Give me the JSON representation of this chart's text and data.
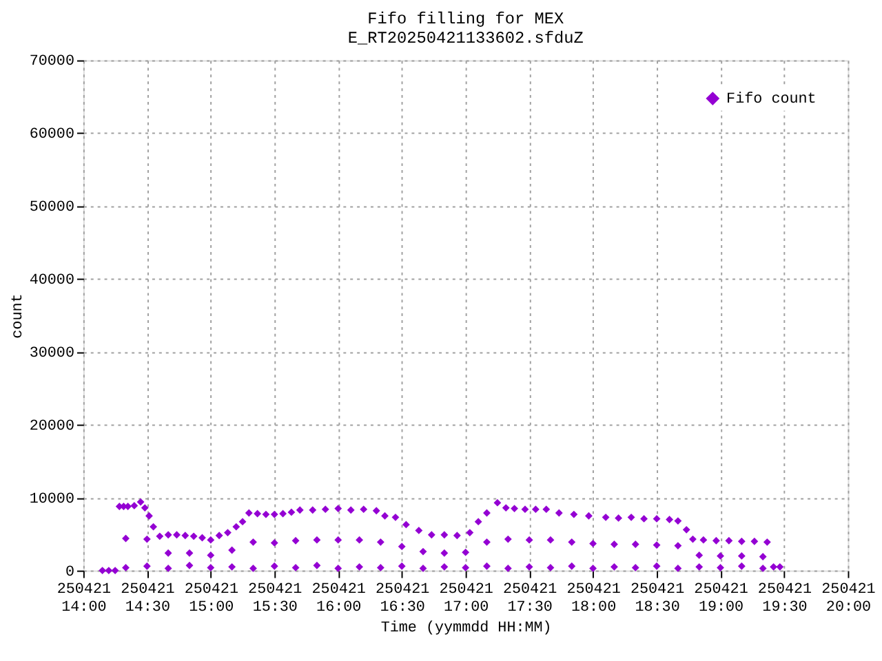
{
  "chart_data": {
    "type": "scatter",
    "title": "Fifo filling for MEX",
    "subtitle": "E_RT20250421133602.sfduZ",
    "xlabel": "Time (yymmdd HH:MM)",
    "ylabel": "count",
    "xlim": [
      "2025-04-21T14:00",
      "2025-04-21T20:00"
    ],
    "xticks": [
      {
        "value": "2025-04-21T14:00",
        "label": "250421\n14:00"
      },
      {
        "value": "2025-04-21T14:30",
        "label": "250421\n14:30"
      },
      {
        "value": "2025-04-21T15:00",
        "label": "250421\n15:00"
      },
      {
        "value": "2025-04-21T15:30",
        "label": "250421\n15:30"
      },
      {
        "value": "2025-04-21T16:00",
        "label": "250421\n16:00"
      },
      {
        "value": "2025-04-21T16:30",
        "label": "250421\n16:30"
      },
      {
        "value": "2025-04-21T17:00",
        "label": "250421\n17:00"
      },
      {
        "value": "2025-04-21T17:30",
        "label": "250421\n17:30"
      },
      {
        "value": "2025-04-21T18:00",
        "label": "250421\n18:00"
      },
      {
        "value": "2025-04-21T18:30",
        "label": "250421\n18:30"
      },
      {
        "value": "2025-04-21T19:00",
        "label": "250421\n19:00"
      },
      {
        "value": "2025-04-21T19:30",
        "label": "250421\n19:30"
      },
      {
        "value": "2025-04-21T20:00",
        "label": "250421\n20:00"
      }
    ],
    "ylim": [
      0,
      70000
    ],
    "yticks": [
      0,
      10000,
      20000,
      30000,
      40000,
      50000,
      60000,
      70000
    ],
    "grid": true,
    "legend": "top right",
    "marker": "diamond",
    "series": [
      {
        "name": "Fifo count",
        "color": "#9400d3",
        "x": [
          "2025-04-21T14:09",
          "2025-04-21T14:12",
          "2025-04-21T14:15",
          "2025-04-21T14:17",
          "2025-04-21T14:19",
          "2025-04-21T14:21",
          "2025-04-21T14:24",
          "2025-04-21T14:27",
          "2025-04-21T14:29",
          "2025-04-21T14:31",
          "2025-04-21T14:33",
          "2025-04-21T14:36",
          "2025-04-21T14:40",
          "2025-04-21T14:44",
          "2025-04-21T14:48",
          "2025-04-21T14:52",
          "2025-04-21T14:56",
          "2025-04-21T15:00",
          "2025-04-21T15:04",
          "2025-04-21T15:08",
          "2025-04-21T15:12",
          "2025-04-21T15:15",
          "2025-04-21T15:18",
          "2025-04-21T15:22",
          "2025-04-21T15:26",
          "2025-04-21T15:30",
          "2025-04-21T15:34",
          "2025-04-21T15:38",
          "2025-04-21T15:42",
          "2025-04-21T15:48",
          "2025-04-21T15:54",
          "2025-04-21T16:00",
          "2025-04-21T16:06",
          "2025-04-21T16:12",
          "2025-04-21T16:18",
          "2025-04-21T16:22",
          "2025-04-21T16:27",
          "2025-04-21T16:32",
          "2025-04-21T16:38",
          "2025-04-21T16:44",
          "2025-04-21T16:50",
          "2025-04-21T16:56",
          "2025-04-21T17:02",
          "2025-04-21T17:06",
          "2025-04-21T17:10",
          "2025-04-21T17:15",
          "2025-04-21T17:19",
          "2025-04-21T17:23",
          "2025-04-21T17:28",
          "2025-04-21T17:33",
          "2025-04-21T17:38",
          "2025-04-21T17:44",
          "2025-04-21T17:51",
          "2025-04-21T17:58",
          "2025-04-21T18:06",
          "2025-04-21T18:12",
          "2025-04-21T18:18",
          "2025-04-21T18:24",
          "2025-04-21T18:30",
          "2025-04-21T18:36",
          "2025-04-21T18:40",
          "2025-04-21T18:44",
          "2025-04-21T18:47",
          "2025-04-21T18:52",
          "2025-04-21T18:58",
          "2025-04-21T19:04",
          "2025-04-21T19:10",
          "2025-04-21T19:16",
          "2025-04-21T19:22",
          "2025-04-21T19:25",
          "2025-04-21T19:28",
          "2025-04-21T14:20",
          "2025-04-21T14:30",
          "2025-04-21T14:40",
          "2025-04-21T14:50",
          "2025-04-21T15:00",
          "2025-04-21T15:10",
          "2025-04-21T15:20",
          "2025-04-21T15:30",
          "2025-04-21T15:40",
          "2025-04-21T15:50",
          "2025-04-21T16:00",
          "2025-04-21T16:10",
          "2025-04-21T16:20",
          "2025-04-21T16:30",
          "2025-04-21T16:40",
          "2025-04-21T16:50",
          "2025-04-21T17:00",
          "2025-04-21T17:10",
          "2025-04-21T17:20",
          "2025-04-21T17:30",
          "2025-04-21T17:40",
          "2025-04-21T17:50",
          "2025-04-21T18:00",
          "2025-04-21T18:10",
          "2025-04-21T18:20",
          "2025-04-21T18:30",
          "2025-04-21T18:40",
          "2025-04-21T18:50",
          "2025-04-21T19:00",
          "2025-04-21T19:10",
          "2025-04-21T19:20",
          "2025-04-21T14:20",
          "2025-04-21T14:30",
          "2025-04-21T14:40",
          "2025-04-21T14:50",
          "2025-04-21T15:00",
          "2025-04-21T15:10",
          "2025-04-21T15:20",
          "2025-04-21T15:30",
          "2025-04-21T15:40",
          "2025-04-21T15:50",
          "2025-04-21T16:00",
          "2025-04-21T16:10",
          "2025-04-21T16:20",
          "2025-04-21T16:30",
          "2025-04-21T16:40",
          "2025-04-21T16:50",
          "2025-04-21T17:00",
          "2025-04-21T17:10",
          "2025-04-21T17:20",
          "2025-04-21T17:30",
          "2025-04-21T17:40",
          "2025-04-21T17:50",
          "2025-04-21T18:00",
          "2025-04-21T18:10",
          "2025-04-21T18:20",
          "2025-04-21T18:30",
          "2025-04-21T18:40",
          "2025-04-21T18:50",
          "2025-04-21T19:00",
          "2025-04-21T19:10",
          "2025-04-21T19:20"
        ],
        "values": [
          0,
          0,
          0,
          8800,
          8800,
          8800,
          8900,
          9400,
          8600,
          7500,
          6000,
          4700,
          4900,
          4900,
          4800,
          4700,
          4500,
          4200,
          4800,
          5200,
          6000,
          6700,
          7900,
          7800,
          7700,
          7700,
          7800,
          8000,
          8300,
          8300,
          8400,
          8500,
          8300,
          8400,
          8200,
          7500,
          7300,
          6300,
          5500,
          4900,
          4900,
          4800,
          5200,
          6700,
          7900,
          9300,
          8600,
          8500,
          8400,
          8400,
          8400,
          7900,
          7700,
          7500,
          7300,
          7200,
          7300,
          7100,
          7100,
          7000,
          6800,
          5600,
          4300,
          4200,
          4100,
          4100,
          4000,
          4000,
          3900,
          500,
          500,
          4400,
          4300,
          2400,
          2400,
          2100,
          2800,
          3900,
          3800,
          4100,
          4200,
          4200,
          4200,
          3900,
          3300,
          2600,
          2400,
          2500,
          3900,
          4300,
          4200,
          4200,
          3900,
          3700,
          3600,
          3600,
          3500,
          3400,
          2100,
          2000,
          2000,
          1900,
          400,
          600,
          300,
          700,
          400,
          500,
          300,
          600,
          400,
          700,
          300,
          500,
          400,
          600,
          300,
          500,
          400,
          600,
          300,
          500,
          400,
          600,
          300,
          500,
          400,
          600,
          300,
          500,
          400,
          600,
          300
        ]
      }
    ]
  }
}
